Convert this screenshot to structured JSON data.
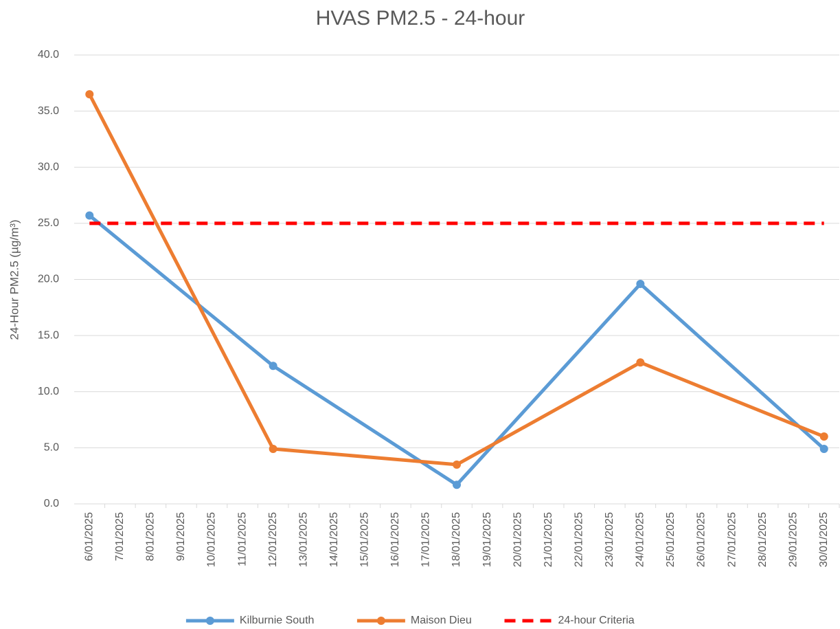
{
  "chart_data": {
    "type": "line",
    "title": "HVAS PM2.5 - 24-hour",
    "y_label": "24-Hour PM2.5 (µg/m³)",
    "x": [
      "6/01/2025",
      "12/01/2025",
      "18/01/2025",
      "24/01/2025",
      "30/01/2025"
    ],
    "xticks": [
      "6/01/2025",
      "7/01/2025",
      "8/01/2025",
      "9/01/2025",
      "10/01/2025",
      "11/01/2025",
      "12/01/2025",
      "13/01/2025",
      "14/01/2025",
      "15/01/2025",
      "16/01/2025",
      "17/01/2025",
      "18/01/2025",
      "19/01/2025",
      "20/01/2025",
      "21/01/2025",
      "22/01/2025",
      "23/01/2025",
      "24/01/2025",
      "25/01/2025",
      "26/01/2025",
      "27/01/2025",
      "28/01/2025",
      "29/01/2025",
      "30/01/2025"
    ],
    "series": [
      {
        "name": "Kilburnie South",
        "color": "#5b9bd5",
        "markers": true,
        "dash": false,
        "values": [
          25.7,
          12.3,
          1.7,
          19.6,
          4.9
        ]
      },
      {
        "name": "Maison Dieu",
        "color": "#ed7d31",
        "markers": true,
        "dash": false,
        "values": [
          36.5,
          4.9,
          3.5,
          12.6,
          6.0
        ]
      },
      {
        "name": "24-hour Criteria",
        "color": "#ff0000",
        "markers": false,
        "dash": true,
        "values": [
          25,
          25,
          25,
          25,
          25
        ]
      }
    ],
    "ylim": [
      0,
      40
    ],
    "yticks": [
      {
        "value": 0,
        "label": "0.0"
      },
      {
        "value": 5,
        "label": "5.0"
      },
      {
        "value": 10,
        "label": "10.0"
      },
      {
        "value": 15,
        "label": "15.0"
      },
      {
        "value": 20,
        "label": "20.0"
      },
      {
        "value": 25,
        "label": "25.0"
      },
      {
        "value": 30,
        "label": "30.0"
      },
      {
        "value": 35,
        "label": "35.0"
      },
      {
        "value": 40,
        "label": "40.0"
      }
    ],
    "grid": true,
    "legend": "bottom"
  }
}
